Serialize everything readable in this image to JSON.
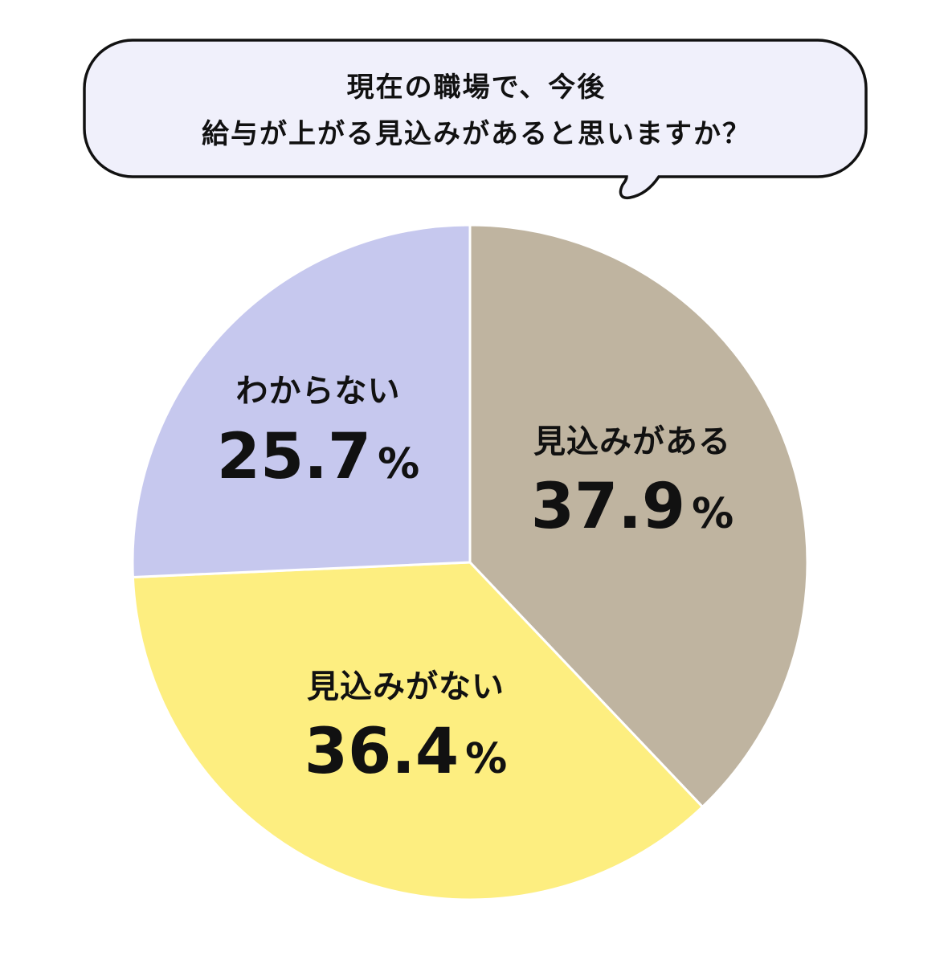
{
  "chart_data": {
    "type": "pie",
    "title_lines": [
      "現在の職場で、今後",
      "給与が上がる見込みがあると思いますか？"
    ],
    "unit": "%",
    "slices": [
      {
        "label": "見込みがある",
        "value": 37.9,
        "display": "37.9",
        "color": "#BFB4A0"
      },
      {
        "label": "見込みがない",
        "value": 36.4,
        "display": "36.4",
        "color": "#FDEE80"
      },
      {
        "label": "わからない",
        "value": 25.7,
        "display": "25.7",
        "color": "#C6C8EE"
      }
    ]
  },
  "colors": {
    "bubble_fill": "#F0F0FB",
    "bubble_stroke": "#111111",
    "slice_border": "#ffffff"
  }
}
